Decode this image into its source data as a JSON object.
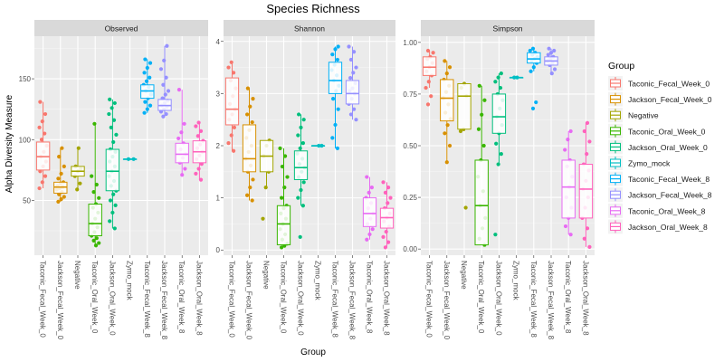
{
  "chart_data": {
    "type": "box",
    "title": "Species Richness",
    "xlabel": "Group",
    "ylabel": "Alpha Diversity Measure",
    "legend": {
      "title": "Group",
      "placement": "right",
      "entries": [
        {
          "name": "Taconic_Fecal_Week_0",
          "color": "#F8766D"
        },
        {
          "name": "Jackson_Fecal_Week_0",
          "color": "#D89000"
        },
        {
          "name": "Negative",
          "color": "#A3A500"
        },
        {
          "name": "Taconic_Oral_Week_0",
          "color": "#39B600"
        },
        {
          "name": "Jackson_Oral_Week_0",
          "color": "#00BF7D"
        },
        {
          "name": "Zymo_mock",
          "color": "#00BFC4"
        },
        {
          "name": "Taconic_Fecal_Week_8",
          "color": "#00B0F6"
        },
        {
          "name": "Jackson_Fecal_Week_8",
          "color": "#9590FF"
        },
        {
          "name": "Taconic_Oral_Week_8",
          "color": "#E76BF3"
        },
        {
          "name": "Jackson_Oral_Week_8",
          "color": "#FF62BC"
        }
      ]
    },
    "categories": [
      "Taconic_Fecal_Week_0",
      "Jackson_Fecal_Week_0",
      "Negative",
      "Taconic_Oral_Week_0",
      "Jackson_Oral_Week_0",
      "Zymo_mock",
      "Taconic_Fecal_Week_8",
      "Jackson_Fecal_Week_8",
      "Taconic_Oral_Week_8",
      "Jackson_Oral_Week_8"
    ],
    "grid": true,
    "panels": [
      {
        "title": "Observed",
        "ylim": [
          5,
          185
        ],
        "yticks": [
          50,
          100,
          150
        ],
        "series": [
          {
            "name": "Taconic_Fecal_Week_0",
            "min": 60,
            "q1": 75,
            "median": 86,
            "q3": 98,
            "max": 131,
            "points": [
              60,
              65,
              70,
              74,
              78,
              82,
              86,
              90,
              95,
              100,
              105,
              110,
              115,
              121,
              131
            ]
          },
          {
            "name": "Jackson_Fecal_Week_0",
            "min": 49,
            "q1": 56,
            "median": 61,
            "q3": 65,
            "max": 93,
            "points": [
              49,
              51,
              53,
              55,
              57,
              59,
              60,
              61,
              62,
              64,
              65,
              68,
              72,
              78,
              86,
              93
            ]
          },
          {
            "name": "Negative",
            "min": 59,
            "q1": 70,
            "median": 74,
            "q3": 78,
            "max": 93,
            "points": [
              59,
              64,
              70,
              74,
              76,
              78,
              93
            ]
          },
          {
            "name": "Taconic_Oral_Week_0",
            "min": 13,
            "q1": 21,
            "median": 31,
            "q3": 47,
            "max": 113,
            "points": [
              13,
              15,
              17,
              19,
              21,
              24,
              28,
              31,
              35,
              40,
              44,
              47,
              52,
              57,
              63,
              70,
              113
            ]
          },
          {
            "name": "Jackson_Oral_Week_0",
            "min": 27,
            "q1": 58,
            "median": 74,
            "q3": 92,
            "max": 133,
            "points": [
              27,
              33,
              40,
              46,
              50,
              55,
              58,
              62,
              66,
              70,
              74,
              78,
              82,
              86,
              90,
              92,
              98,
              104,
              110,
              116,
              121,
              126,
              130,
              133
            ]
          },
          {
            "name": "Zymo_mock",
            "min": 84,
            "q1": 84,
            "median": 84,
            "q3": 84,
            "max": 84,
            "points": [
              84,
              84
            ]
          },
          {
            "name": "Taconic_Fecal_Week_8",
            "min": 122,
            "q1": 134,
            "median": 140,
            "q3": 145,
            "max": 166,
            "points": [
              122,
              125,
              128,
              131,
              134,
              137,
              140,
              143,
              145,
              148,
              151,
              155,
              159,
              163,
              166
            ]
          },
          {
            "name": "Jackson_Fecal_Week_8",
            "min": 119,
            "q1": 124,
            "median": 128,
            "q3": 133,
            "max": 177,
            "points": [
              119,
              121,
              123,
              125,
              127,
              128,
              130,
              132,
              134,
              137,
              140,
              145,
              151,
              158,
              165,
              177
            ]
          },
          {
            "name": "Taconic_Oral_Week_8",
            "min": 71,
            "q1": 81,
            "median": 88,
            "q3": 97,
            "max": 141,
            "points": [
              71,
              76,
              81,
              85,
              88,
              92,
              97,
              101,
              106,
              113,
              141
            ]
          },
          {
            "name": "Jackson_Oral_Week_8",
            "min": 67,
            "q1": 81,
            "median": 90,
            "q3": 99,
            "max": 114,
            "points": [
              67,
              72,
              76,
              80,
              84,
              87,
              90,
              93,
              96,
              99,
              103,
              107,
              111,
              114
            ]
          }
        ]
      },
      {
        "title": "Shannon",
        "ylim": [
          -0.1,
          4.1
        ],
        "yticks": [
          0,
          1,
          2,
          3,
          4
        ],
        "series": [
          {
            "name": "Taconic_Fecal_Week_0",
            "min": 1.9,
            "q1": 2.4,
            "median": 2.7,
            "q3": 3.3,
            "max": 3.6,
            "points": [
              1.9,
              2.05,
              2.2,
              2.35,
              2.5,
              2.6,
              2.7,
              2.8,
              2.95,
              3.1,
              3.25,
              3.4,
              3.5,
              3.6
            ]
          },
          {
            "name": "Jackson_Fecal_Week_0",
            "min": 0.95,
            "q1": 1.5,
            "median": 1.75,
            "q3": 2.4,
            "max": 3.1,
            "points": [
              0.95,
              1.05,
              1.2,
              1.35,
              1.5,
              1.62,
              1.75,
              1.88,
              2.0,
              2.15,
              2.3,
              2.45,
              2.6,
              2.75,
              2.9,
              3.1
            ]
          },
          {
            "name": "Negative",
            "min": 1.2,
            "q1": 1.5,
            "median": 1.8,
            "q3": 2.1,
            "max": 2.1,
            "points": [
              0.6,
              1.2,
              1.5,
              1.8,
              2.0,
              2.1
            ]
          },
          {
            "name": "Taconic_Oral_Week_0",
            "min": 0.05,
            "q1": 0.1,
            "median": 0.5,
            "q3": 0.85,
            "max": 1.95,
            "points": [
              0.05,
              0.08,
              0.12,
              0.2,
              0.3,
              0.4,
              0.5,
              0.6,
              0.7,
              0.8,
              0.85,
              1.0,
              1.2,
              1.4,
              1.6,
              1.8,
              1.95
            ]
          },
          {
            "name": "Jackson_Oral_Week_0",
            "min": 0.85,
            "q1": 1.35,
            "median": 1.58,
            "q3": 1.9,
            "max": 2.6,
            "points": [
              0.25,
              0.85,
              1.0,
              1.15,
              1.3,
              1.4,
              1.5,
              1.58,
              1.65,
              1.75,
              1.85,
              1.95,
              2.05,
              2.2,
              2.35,
              2.5,
              2.6
            ]
          },
          {
            "name": "Zymo_mock",
            "min": 2.0,
            "q1": 2.0,
            "median": 2.0,
            "q3": 2.0,
            "max": 2.0,
            "points": [
              2.0,
              2.0
            ]
          },
          {
            "name": "Taconic_Fecal_Week_8",
            "min": 1.95,
            "q1": 3.0,
            "median": 3.25,
            "q3": 3.6,
            "max": 3.9,
            "points": [
              1.95,
              2.15,
              2.4,
              2.7,
              2.9,
              3.05,
              3.15,
              3.25,
              3.35,
              3.45,
              3.55,
              3.65,
              3.75,
              3.85,
              3.9
            ]
          },
          {
            "name": "Jackson_Fecal_Week_8",
            "min": 2.5,
            "q1": 2.8,
            "median": 3.0,
            "q3": 3.25,
            "max": 3.9,
            "points": [
              2.5,
              2.6,
              2.7,
              2.8,
              2.9,
              3.0,
              3.05,
              3.1,
              3.2,
              3.3,
              3.4,
              3.5,
              3.65,
              3.8,
              3.9
            ]
          },
          {
            "name": "Taconic_Oral_Week_8",
            "min": 0.2,
            "q1": 0.45,
            "median": 0.7,
            "q3": 1.0,
            "max": 1.4,
            "points": [
              0.2,
              0.3,
              0.4,
              0.5,
              0.6,
              0.7,
              0.8,
              0.9,
              1.0,
              1.1,
              1.2,
              1.4
            ]
          },
          {
            "name": "Jackson_Oral_Week_8",
            "min": 0.05,
            "q1": 0.42,
            "median": 0.62,
            "q3": 0.8,
            "max": 1.3,
            "points": [
              0.05,
              0.15,
              0.25,
              0.35,
              0.45,
              0.55,
              0.62,
              0.7,
              0.8,
              0.9,
              1.0,
              1.1,
              1.2,
              1.3
            ]
          }
        ]
      },
      {
        "title": "Simpson",
        "ylim": [
          -0.03,
          1.03
        ],
        "yticks": [
          0.0,
          0.25,
          0.5,
          0.75,
          1.0
        ],
        "ytick_labels": [
          "0.00",
          "0.25",
          "0.50",
          "0.75",
          "1.00"
        ],
        "series": [
          {
            "name": "Taconic_Fecal_Week_0",
            "min": 0.78,
            "q1": 0.84,
            "median": 0.88,
            "q3": 0.93,
            "max": 0.96,
            "points": [
              0.7,
              0.74,
              0.78,
              0.81,
              0.84,
              0.86,
              0.88,
              0.9,
              0.92,
              0.93,
              0.95,
              0.96
            ]
          },
          {
            "name": "Jackson_Fecal_Week_0",
            "min": 0.42,
            "q1": 0.62,
            "median": 0.73,
            "q3": 0.82,
            "max": 0.91,
            "points": [
              0.42,
              0.5,
              0.56,
              0.6,
              0.63,
              0.66,
              0.7,
              0.73,
              0.76,
              0.79,
              0.82,
              0.85,
              0.88,
              0.91
            ]
          },
          {
            "name": "Negative",
            "min": 0.57,
            "q1": 0.58,
            "median": 0.74,
            "q3": 0.8,
            "max": 0.8,
            "points": [
              0.2,
              0.57,
              0.58,
              0.74,
              0.78,
              0.8
            ]
          },
          {
            "name": "Taconic_Oral_Week_0",
            "min": 0.02,
            "q1": 0.02,
            "median": 0.21,
            "q3": 0.43,
            "max": 0.79,
            "points": [
              0.02,
              0.05,
              0.1,
              0.15,
              0.21,
              0.28,
              0.35,
              0.43,
              0.5,
              0.58,
              0.65,
              0.72,
              0.79
            ]
          },
          {
            "name": "Jackson_Oral_Week_0",
            "min": 0.41,
            "q1": 0.56,
            "median": 0.64,
            "q3": 0.75,
            "max": 0.85,
            "points": [
              0.07,
              0.41,
              0.46,
              0.51,
              0.56,
              0.6,
              0.64,
              0.68,
              0.72,
              0.75,
              0.78,
              0.81,
              0.83,
              0.85
            ]
          },
          {
            "name": "Zymo_mock",
            "min": 0.83,
            "q1": 0.83,
            "median": 0.83,
            "q3": 0.83,
            "max": 0.83,
            "points": [
              0.83,
              0.83
            ]
          },
          {
            "name": "Taconic_Fecal_Week_8",
            "min": 0.86,
            "q1": 0.9,
            "median": 0.92,
            "q3": 0.95,
            "max": 0.97,
            "points": [
              0.68,
              0.71,
              0.86,
              0.88,
              0.9,
              0.91,
              0.92,
              0.93,
              0.94,
              0.95,
              0.96,
              0.97
            ]
          },
          {
            "name": "Jackson_Fecal_Week_8",
            "min": 0.85,
            "q1": 0.89,
            "median": 0.91,
            "q3": 0.93,
            "max": 0.97,
            "points": [
              0.85,
              0.87,
              0.89,
              0.9,
              0.91,
              0.92,
              0.93,
              0.94,
              0.95,
              0.96,
              0.97
            ]
          },
          {
            "name": "Taconic_Oral_Week_8",
            "min": 0.07,
            "q1": 0.15,
            "median": 0.3,
            "q3": 0.43,
            "max": 0.57,
            "points": [
              0.07,
              0.11,
              0.15,
              0.2,
              0.25,
              0.3,
              0.35,
              0.4,
              0.43,
              0.48,
              0.53,
              0.57
            ]
          },
          {
            "name": "Jackson_Oral_Week_8",
            "min": 0.01,
            "q1": 0.15,
            "median": 0.29,
            "q3": 0.41,
            "max": 0.61,
            "points": [
              0.01,
              0.05,
              0.1,
              0.15,
              0.2,
              0.25,
              0.29,
              0.33,
              0.38,
              0.41,
              0.46,
              0.52,
              0.57,
              0.61
            ]
          }
        ]
      }
    ]
  }
}
